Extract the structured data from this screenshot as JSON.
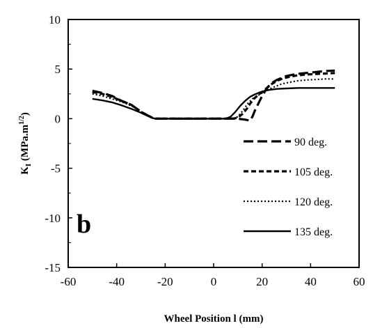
{
  "chart_data": {
    "type": "line",
    "xlabel": "Wheel Position l (mm)",
    "ylabel": {
      "main": "K",
      "sub": "I",
      "rest": " (MPa.m",
      "sup": "1/2",
      "close": ")"
    },
    "xlim": [
      -60,
      60
    ],
    "ylim": [
      -15,
      10
    ],
    "xticks": [
      -60,
      -40,
      -20,
      0,
      20,
      40,
      60
    ],
    "yticks": [
      -15,
      -10,
      -5,
      0,
      5,
      10
    ],
    "grid": false,
    "legend_position": "lower-right",
    "panel_label": "b",
    "series": [
      {
        "name": "90 deg.",
        "style": "long-dash",
        "x": [
          -50,
          -46,
          -42,
          -38,
          -34,
          -30,
          -27,
          -25,
          -24,
          -20,
          -10,
          0,
          10,
          13,
          15,
          16,
          17,
          18,
          19,
          20,
          21,
          22,
          24,
          26,
          28,
          30,
          34,
          38,
          42,
          46,
          50
        ],
        "y": [
          2.8,
          2.6,
          2.3,
          1.8,
          1.4,
          0.7,
          0.3,
          0.05,
          0,
          0,
          0,
          0,
          0,
          -0.1,
          -0.2,
          0.2,
          0.8,
          1.3,
          1.8,
          2.3,
          2.7,
          3.1,
          3.6,
          3.9,
          4.1,
          4.3,
          4.5,
          4.6,
          4.7,
          4.8,
          4.85
        ]
      },
      {
        "name": "105 deg.",
        "style": "dash",
        "x": [
          -50,
          -46,
          -42,
          -38,
          -34,
          -30,
          -27,
          -25,
          -24,
          -20,
          -10,
          0,
          8,
          10,
          12,
          14,
          15,
          16,
          17,
          18,
          19,
          20,
          21,
          22,
          24,
          26,
          28,
          30,
          34,
          38,
          42,
          46,
          50
        ],
        "y": [
          2.7,
          2.5,
          2.2,
          1.8,
          1.4,
          0.7,
          0.3,
          0.05,
          0,
          0,
          0,
          0,
          0,
          0.1,
          0.5,
          1.1,
          1.5,
          1.8,
          2.1,
          2.3,
          2.5,
          2.7,
          2.9,
          3.1,
          3.5,
          3.8,
          4.0,
          4.15,
          4.35,
          4.45,
          4.5,
          4.55,
          4.6
        ]
      },
      {
        "name": "120 deg.",
        "style": "dotted",
        "x": [
          -50,
          -46,
          -42,
          -38,
          -34,
          -30,
          -27,
          -25,
          -24,
          -20,
          -10,
          0,
          8,
          10,
          12,
          14,
          16,
          18,
          20,
          22,
          24,
          26,
          28,
          30,
          34,
          38,
          42,
          46,
          50
        ],
        "y": [
          2.5,
          2.3,
          2.0,
          1.7,
          1.3,
          0.7,
          0.3,
          0.05,
          0,
          0,
          0,
          0,
          0,
          0.2,
          0.8,
          1.5,
          2.0,
          2.3,
          2.6,
          2.9,
          3.1,
          3.3,
          3.5,
          3.6,
          3.8,
          3.9,
          3.95,
          4.0,
          4.0
        ]
      },
      {
        "name": "135 deg.",
        "style": "solid",
        "x": [
          -50,
          -46,
          -42,
          -38,
          -34,
          -30,
          -27,
          -25,
          -24,
          -20,
          -10,
          0,
          5,
          7,
          9,
          11,
          13,
          15,
          17,
          19,
          21,
          23,
          26,
          30,
          35,
          40,
          45,
          50
        ],
        "y": [
          2.0,
          1.85,
          1.65,
          1.35,
          1.0,
          0.6,
          0.25,
          0.05,
          0,
          0,
          0,
          0,
          0,
          0.2,
          0.7,
          1.3,
          1.8,
          2.2,
          2.45,
          2.65,
          2.8,
          2.9,
          3.0,
          3.05,
          3.1,
          3.1,
          3.1,
          3.1
        ]
      }
    ]
  }
}
